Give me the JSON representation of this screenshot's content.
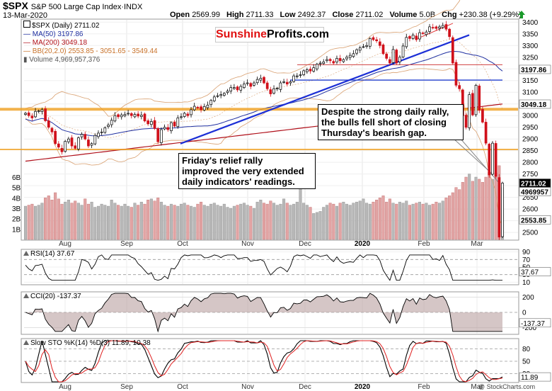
{
  "header": {
    "symbol": "$SPX",
    "name": "S&P 500 Large Cap Index",
    "exchange": "INDX",
    "date": "13-Mar-2020",
    "open_label": "Open",
    "open": "2569.99",
    "high_label": "High",
    "high": "2711.33",
    "low_label": "Low",
    "low": "2492.37",
    "close_label": "Close",
    "close": "2711.02",
    "volume_label": "Volume",
    "volume": "5.0B",
    "chg_label": "Chg",
    "chg": "+230.38 (+9.29%)",
    "credit": "@ StockCharts.com"
  },
  "logo": {
    "part1": "Sunshine",
    "part2": "Profits.com"
  },
  "legend": [
    {
      "text": "$SPX (Daily) 2711.02",
      "color": "#000000"
    },
    {
      "text": "MA(50) 3197.86",
      "color": "#1f2fa0"
    },
    {
      "text": "MA(200) 3049.18",
      "color": "#b0101a"
    },
    {
      "text": "BB(20,2.0) 2553.85 - 3051.65 - 3549.44",
      "color": "#c8722a"
    },
    {
      "text": "Volume 4,969,957,376",
      "color": "#555555"
    }
  ],
  "annotations": {
    "rally": "Despite the strong daily rally,\nthe bulls fell short of closing\nThursday's bearish gap.",
    "relief": "Friday's relief rally\nimproved the very extended\ndaily indicators' readings."
  },
  "panels": {
    "rsi": "RSI(14) 37.67",
    "cci": "CCI(20) -137.37",
    "sto": "Slow STO %K(14) %D(3) 11.89, 10.38"
  },
  "colors": {
    "up": "#ffffff",
    "down": "#d0101a",
    "ma50": "#1f2fa0",
    "ma200": "#b0101a",
    "bb": "#d9a070",
    "trend": "#1c2fd6",
    "support": "#f0a020",
    "volume": "#c4a0a0"
  },
  "chart_data": {
    "type": "candlestick",
    "title": "$SPX S&P 500 Large Cap Index",
    "x_labels": [
      "Aug",
      "Sep",
      "Oct",
      "Nov",
      "Dec",
      "2020",
      "Feb",
      "Mar"
    ],
    "price_axis": [
      3400,
      3350,
      3300,
      3250,
      3200,
      3150,
      3100,
      3050,
      3000,
      2950,
      2900,
      2850,
      2800,
      2750,
      2700,
      2650,
      2600,
      2550,
      2500
    ],
    "ylim": [
      2470,
      3410
    ],
    "volume_axis": [
      "6B",
      "5B",
      "4B",
      "3B",
      "2B",
      "1B"
    ],
    "last_labels": [
      "3197.86",
      "3049.18",
      "2711.02",
      "4969957",
      "2553.85"
    ],
    "close_series": [
      3010,
      3000,
      2990,
      3018,
      3020,
      3025,
      2978,
      2950,
      2930,
      2880,
      2865,
      2845,
      2890,
      2900,
      2870,
      2860,
      2905,
      2920,
      2900,
      2870,
      2880,
      2915,
      2925,
      2930,
      2948,
      2960,
      2980,
      3000,
      2995,
      3003,
      3005,
      3010,
      3000,
      3005,
      2998,
      3002,
      2977,
      2965,
      2975,
      2945,
      2888,
      2940,
      2950,
      2940,
      2970,
      2955,
      2990,
      2995,
      3010,
      3000,
      3025,
      3040,
      3035,
      3025,
      3039,
      3045,
      3065,
      3080,
      3085,
      3090,
      3095,
      3105,
      3120,
      3120,
      3110,
      3125,
      3135,
      3140,
      3125,
      3140,
      3155,
      3160,
      3140,
      3115,
      3093,
      3115,
      3117,
      3140,
      3145,
      3135,
      3145,
      3170,
      3170,
      3175,
      3192,
      3196,
      3191,
      3205,
      3220,
      3225,
      3230,
      3240,
      3235,
      3225,
      3245,
      3235,
      3240,
      3250,
      3258,
      3265,
      3282,
      3290,
      3295,
      3300,
      3330,
      3325,
      3320,
      3300,
      3265,
      3245,
      3225,
      3283,
      3225,
      3250,
      3298,
      3335,
      3330,
      3345,
      3325,
      3355,
      3352,
      3358,
      3380,
      3375,
      3373,
      3380,
      3386,
      3370,
      3338,
      3225,
      3130,
      3115,
      3000,
      2950,
      3090,
      3003,
      3130,
      3023,
      2972,
      2882,
      2746,
      2882,
      2740,
      2480,
      2711
    ],
    "volume_series": [
      3.2,
      3.3,
      3.4,
      3.2,
      3.3,
      3.5,
      4.0,
      4.2,
      3.8,
      4.5,
      3.9,
      3.4,
      3.6,
      3.8,
      3.5,
      3.7,
      3.5,
      3.3,
      3.9,
      3.4,
      3.6,
      3.1,
      3.2,
      3.4,
      3.3,
      3.2,
      3.8,
      3.5,
      3.3,
      3.2,
      3.4,
      3.2,
      3.1,
      3.5,
      3.3,
      3.6,
      3.4,
      3.8,
      3.9,
      3.7,
      4.0,
      3.6,
      3.3,
      3.2,
      3.4,
      3.3,
      3.2,
      3.4,
      3.5,
      3.3,
      3.2,
      3.1,
      3.4,
      3.6,
      3.3,
      3.2,
      3.4,
      3.5,
      3.3,
      3.2,
      3.4,
      3.1,
      3.0,
      3.2,
      3.3,
      3.4,
      3.5,
      3.3,
      3.2,
      3.0,
      3.6,
      3.8,
      3.5,
      3.4,
      3.7,
      3.5,
      3.3,
      3.4,
      3.9,
      3.5,
      3.3,
      3.4,
      3.6,
      5.2,
      3.5,
      3.3,
      3.1,
      2.5,
      2.6,
      2.7,
      3.1,
      3.3,
      3.5,
      3.4,
      3.2,
      3.5,
      3.6,
      3.4,
      3.3,
      3.5,
      3.6,
      3.7,
      3.9,
      3.5,
      3.4,
      3.6,
      3.8,
      4.0,
      4.2,
      3.6,
      3.9,
      3.5,
      3.4,
      3.6,
      3.5,
      3.7,
      3.3,
      3.4,
      3.5,
      3.6,
      3.4,
      3.5,
      3.3,
      3.4,
      3.6,
      3.5,
      3.7,
      4.0,
      4.2,
      4.5,
      5.0,
      4.8,
      5.5,
      6.0,
      6.3,
      5.6,
      6.0,
      5.8,
      5.5,
      6.0,
      6.5,
      5.8,
      6.4,
      7.1,
      5.0
    ],
    "rsi": {
      "axis": [
        90,
        70,
        50,
        30,
        10
      ],
      "last": "37.67"
    },
    "cci": {
      "axis": [
        200,
        0,
        -200
      ],
      "last": "-137.37"
    },
    "sto": {
      "axis": [
        80,
        50,
        20
      ],
      "last": "11.89"
    }
  }
}
